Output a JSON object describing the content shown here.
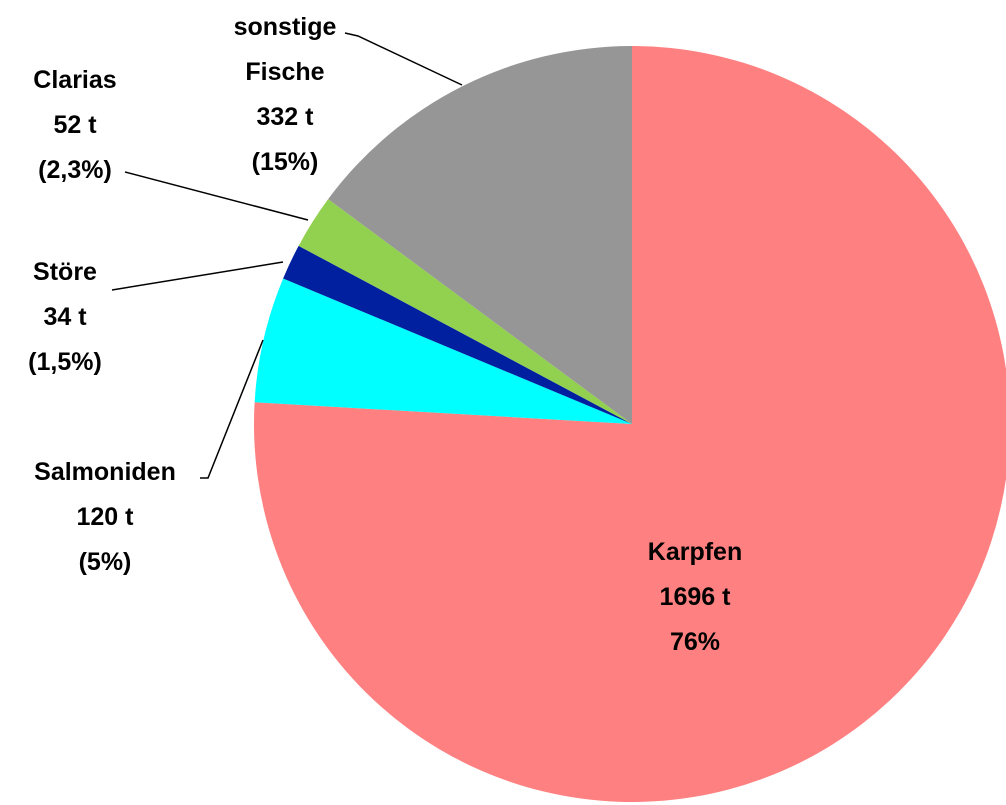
{
  "chart_data": {
    "type": "pie",
    "categories": [
      "Karpfen",
      "Salmoniden",
      "Störe",
      "Clarias",
      "sonstige Fische"
    ],
    "values": [
      1696,
      120,
      34,
      52,
      332
    ],
    "value_labels": [
      "1696 t",
      "120 t",
      "34 t",
      "52 t",
      "332 t"
    ],
    "percent_labels": [
      "76%",
      "(5%)",
      "(1,5%)",
      "(2,3%)",
      "(15%)"
    ],
    "colors": [
      "#ff8080",
      "#00ffff",
      "#00209f",
      "#92d050",
      "#969696"
    ]
  }
}
